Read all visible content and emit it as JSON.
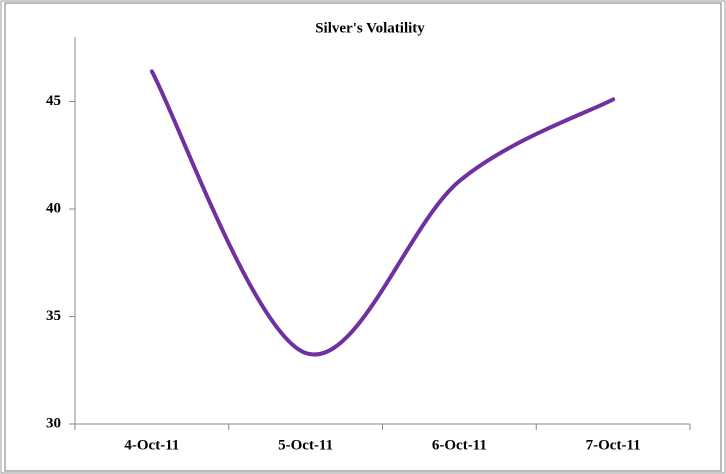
{
  "chart_data": {
    "type": "line",
    "title": "Silver's Volatility",
    "categories": [
      "4-Oct-11",
      "5-Oct-11",
      "6-Oct-11",
      "7-Oct-11"
    ],
    "series": [
      {
        "name": "Silver",
        "color": "#7030a0",
        "values": [
          46.4,
          33.3,
          41.3,
          45.1
        ]
      }
    ],
    "ylim": [
      30,
      48
    ],
    "yticks": [
      30,
      35,
      40,
      45
    ],
    "grid": false
  }
}
